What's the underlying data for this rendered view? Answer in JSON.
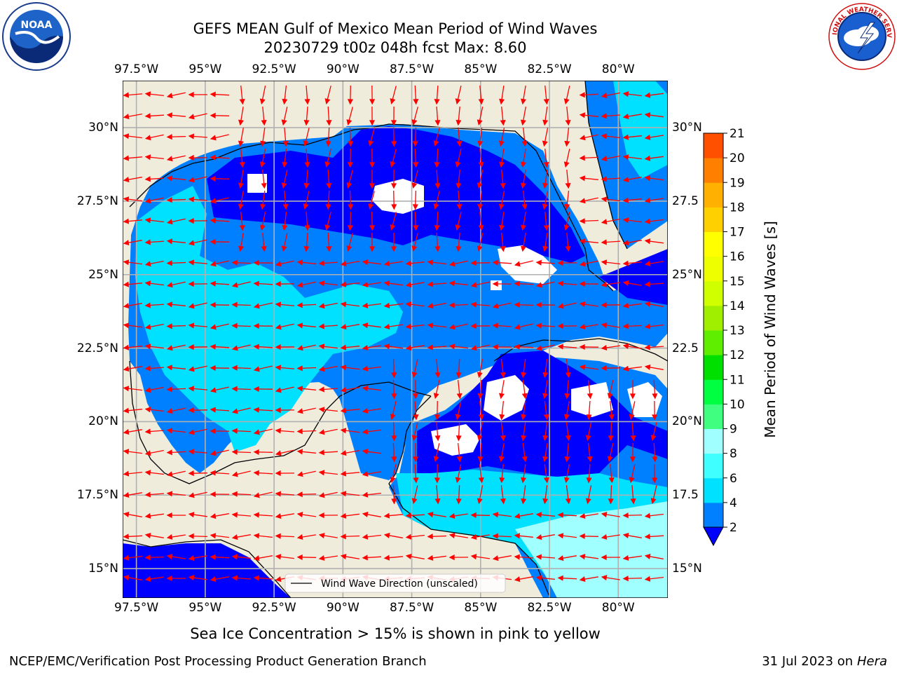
{
  "figure": {
    "title_line1": "GEFS MEAN Gulf of Mexico Mean Period of Wind Waves",
    "title_line2": "20230729 t00z 048h fcst   Max: 8.60",
    "footnote": "Sea Ice Concentration > 15% is shown in pink to yellow",
    "credit": "NCEP/EMC/Verification Post Processing Product Generation Branch",
    "date_text": "31 Jul 2023 on ",
    "host_text": "Hera"
  },
  "map": {
    "lon_labels": [
      "97.5°W",
      "95°W",
      "92.5°W",
      "90°W",
      "87.5°W",
      "85°W",
      "82.5°W",
      "80°W"
    ],
    "lat_labels_left": [
      "30°N",
      "27.5°N",
      "25°N",
      "22.5°N",
      "20°N",
      "17.5°N",
      "15°N"
    ],
    "lat_labels_right": [
      "30°N",
      "27.5",
      "25°N",
      "22.5",
      "20°N",
      "17.5",
      "15°N"
    ],
    "lon_range": [
      -98,
      -78.2
    ],
    "lat_range": [
      14,
      31.6
    ],
    "land_color": "#efecdc",
    "grid_color": "#b0b0b0",
    "arrow_color": "#ff0000",
    "legend_label": "Wind Wave Direction (unscaled)"
  },
  "colorbar": {
    "label": "Mean Period of Wind Waves [s]",
    "ticks": [
      "2",
      "4",
      "6",
      "8",
      "9",
      "10",
      "11",
      "12",
      "13",
      "14",
      "15",
      "16",
      "17",
      "18",
      "19",
      "20",
      "21"
    ],
    "colors": [
      "#0080ff",
      "#00e0ff",
      "#40ffff",
      "#a0ffff",
      "#40ff80",
      "#00ff40",
      "#00e000",
      "#60ee00",
      "#a0ee00",
      "#d0ff00",
      "#eeff00",
      "#ffff00",
      "#ffd000",
      "#ffb000",
      "#ff8000",
      "#ff5000",
      "#ff2000",
      "#ff0000"
    ],
    "under_color": "#0000ff"
  },
  "logos": {
    "noaa_text": "NOAA",
    "nws_text": "NATIONAL WEATHER SERVICE"
  }
}
